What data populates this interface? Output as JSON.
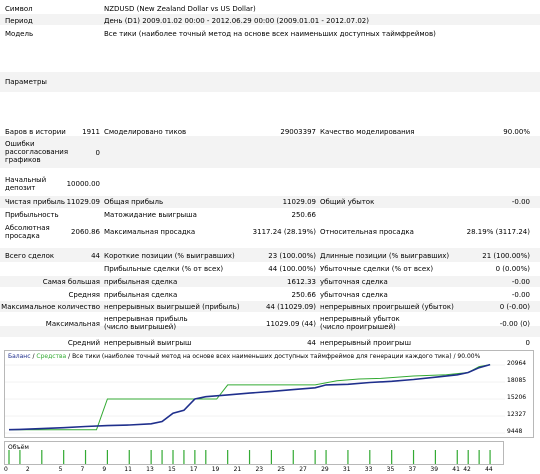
{
  "report": {
    "symbol_label": "Символ",
    "symbol_value": "NZDUSD (New Zealand Dollar vs US Dollar)",
    "period_label": "Период",
    "period_value": "День (D1) 2009.01.02 00:00 - 2012.06.29 00:00 (2009.01.01 - 2012.07.02)",
    "model_label": "Модель",
    "model_value": "Все тики (наиболее точный метод на основе всех наименьших доступных таймфреймов)",
    "params_label": "Параметры",
    "bars_label": "Баров в истории",
    "bars_value": "1911",
    "ticks_label": "Смоделировано тиков",
    "ticks_value": "29003397",
    "quality_label": "Качество моделирования",
    "quality_value": "90.00%",
    "errors_label": "Ошибки рассогласования графиков",
    "errors_value": "0",
    "deposit_label": "Начальный депозит",
    "deposit_value": "10000.00",
    "net_label": "Чистая прибыль",
    "net_value": "11029.09",
    "gross_profit_label": "Общая прибыль",
    "gross_profit_value": "11029.09",
    "gross_loss_label": "Общий убыток",
    "gross_loss_value": "-0.00",
    "pf_label": "Прибыльность",
    "expected_label": "Матожидание выигрыша",
    "expected_value": "250.66",
    "abs_dd_label": "Абсолютная просадка",
    "abs_dd_value": "2060.86",
    "max_dd_label": "Максимальная просадка",
    "max_dd_value": "3117.24 (28.19%)",
    "rel_dd_label": "Относительная просадка",
    "rel_dd_value": "28.19% (3117.24)",
    "total_label": "Всего сделок",
    "total_value": "44",
    "short_label": "Короткие позиции (% выигравших)",
    "short_value": "23 (100.00%)",
    "long_label": "Длинные позиции (% выигравших)",
    "long_value": "21 (100.00%)",
    "profit_trades_label": "Прибыльные сделки (% от всех)",
    "profit_trades_value": "44 (100.00%)",
    "loss_trades_label": "Убыточные сделки (% от всех)",
    "loss_trades_value": "0 (0.00%)",
    "largest_label": "Самая большая",
    "largest_win_label": "прибыльная сделка",
    "largest_win_value": "1612.33",
    "largest_loss_label": "убыточная сделка",
    "largest_loss_value": "-0.00",
    "average_label": "Средняя",
    "average_win_label": "прибыльная сделка",
    "average_win_value": "250.66",
    "average_loss_label": "убыточная сделка",
    "average_loss_value": "-0.00",
    "max_count_label": "Максимальное количество",
    "cons_wins_label": "непрерывных выигрышей (прибыль)",
    "cons_wins_value": "44 (11029.09)",
    "cons_losses_label": "непрерывных проигрышей (убыток)",
    "cons_losses_value": "0 (-0.00)",
    "maximal_label": "Максимальная",
    "cons_profit_label": "непрерывная прибыль (число выигрышей)",
    "cons_profit_value": "11029.09 (44)",
    "cons_loss_label": "непрерывный убыток (число проигрышей)",
    "cons_loss_value": "-0.00 (0)",
    "avg_cons_label": "Средний",
    "avg_wins_label": "непрерывный выигрыш",
    "avg_wins_value": "44",
    "avg_losses_label": "непрерывный проигрыш",
    "avg_losses_value": "0"
  },
  "chart_header": {
    "balance": "Баланс",
    "sep1": " / ",
    "equity": "Средства",
    "rest": " / Все тики (наиболее точный метод на основе всех наименьших доступных таймфреймов для генерации каждого тика) / 90.00%"
  },
  "colors": {
    "balance": "#1f2f8c",
    "equity": "#33aa33",
    "volume": "#33aa33",
    "header_balance": "#1f2f8c",
    "header_equity": "#33aa33"
  },
  "volume_label": "Объём",
  "chart_data": {
    "type": "line",
    "y_ticks": [
      "20964",
      "18085",
      "15206",
      "12327",
      "9448"
    ],
    "ylim": [
      9448,
      20964
    ],
    "x_ticks": [
      "0",
      "2",
      "5",
      "7",
      "9",
      "11",
      "13",
      "15",
      "17",
      "19",
      "21",
      "23",
      "25",
      "27",
      "29",
      "31",
      "33",
      "35",
      "37",
      "39",
      "41",
      "42",
      "44"
    ],
    "xlim": [
      0,
      45
    ],
    "series": [
      {
        "name": "Баланс",
        "x": [
          0,
          1,
          3,
          5,
          7,
          9,
          11,
          13,
          14,
          15,
          16,
          17,
          18,
          20,
          22,
          24,
          26,
          28,
          29,
          31,
          33,
          35,
          37,
          39,
          41,
          42,
          43,
          44
        ],
        "values": [
          10000,
          10050,
          10200,
          10350,
          10550,
          10700,
          10800,
          11000,
          11400,
          12800,
          13300,
          15200,
          15600,
          15900,
          16200,
          16500,
          16800,
          17100,
          17600,
          17700,
          18000,
          18200,
          18500,
          18900,
          19300,
          19700,
          20500,
          21029
        ]
      },
      {
        "name": "Средства",
        "x": [
          0,
          3,
          8,
          9,
          19,
          20,
          20.5,
          22,
          28,
          30,
          32,
          34,
          37,
          40,
          42,
          43,
          44
        ],
        "values": [
          10000,
          10000,
          10000,
          15200,
          15200,
          17600,
          17600,
          17600,
          17600,
          18300,
          18600,
          18700,
          19100,
          19300,
          19700,
          20700,
          21029
        ]
      }
    ],
    "volume": {
      "x": [
        0,
        1,
        3,
        5,
        7,
        9,
        11,
        13,
        14,
        15,
        16,
        17,
        18,
        20,
        22,
        24,
        26,
        28,
        29,
        31,
        33,
        35,
        37,
        39,
        41,
        42,
        43,
        44
      ],
      "values": [
        1,
        1,
        1,
        1,
        1,
        1,
        1,
        1,
        1,
        1,
        1,
        1,
        1,
        1,
        1,
        1,
        1,
        1,
        1,
        1,
        1,
        1,
        1,
        1,
        1,
        1,
        1,
        1
      ]
    }
  }
}
